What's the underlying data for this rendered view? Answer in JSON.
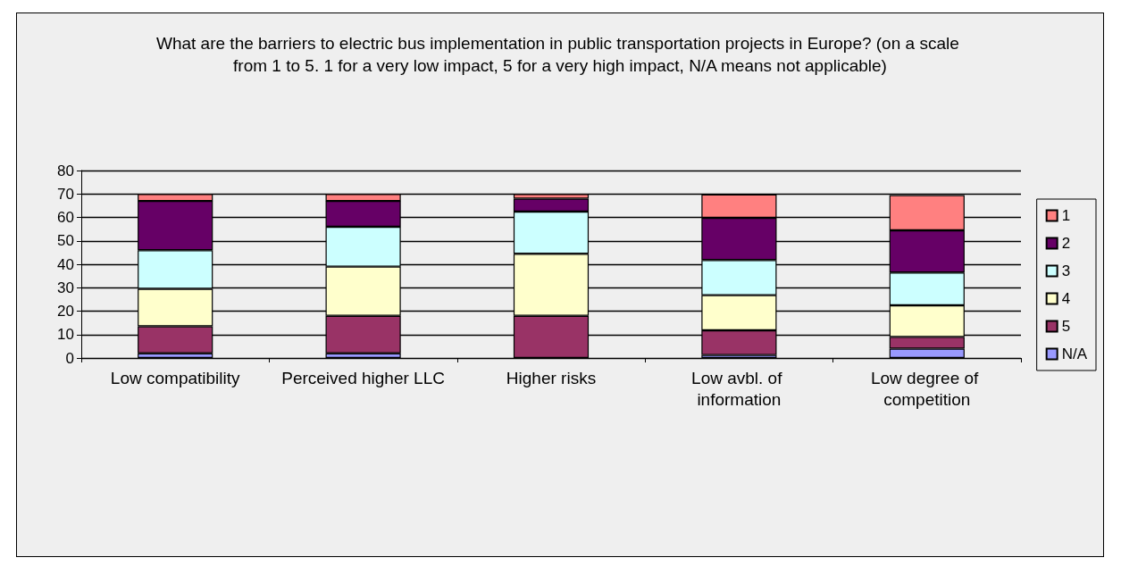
{
  "chart_data": {
    "type": "bar",
    "title": "What are the barriers to electric bus implementation in public transportation projects in Europe? (on a scale from 1 to 5. 1 for a very low impact, 5 for a very high impact, N/A means not applicable)",
    "categories": [
      "Low compatibility",
      "Perceived higher LLC",
      "Higher risks",
      "Low avbl. of information",
      "Low degree of competition"
    ],
    "stacked": true,
    "series": [
      {
        "name": "N/A",
        "color": "#9999ff",
        "values": [
          2,
          2,
          0,
          1.3,
          4
        ]
      },
      {
        "name": "5",
        "color": "#993366",
        "values": [
          11.5,
          16,
          18,
          10.5,
          5
        ]
      },
      {
        "name": "4",
        "color": "#ffffcc",
        "values": [
          16,
          21,
          26.5,
          15,
          13.5
        ]
      },
      {
        "name": "3",
        "color": "#ccffff",
        "values": [
          16.5,
          17,
          18,
          15,
          14
        ]
      },
      {
        "name": "2",
        "color": "#660066",
        "values": [
          21,
          11,
          5.5,
          18,
          18
        ]
      },
      {
        "name": "1",
        "color": "#ff8080",
        "values": [
          3,
          3,
          2,
          10,
          15
        ]
      }
    ],
    "ylim": [
      0,
      80
    ],
    "yticks": [
      0,
      10,
      20,
      30,
      40,
      50,
      60,
      70,
      80
    ],
    "grid": "y",
    "legend": "right"
  }
}
